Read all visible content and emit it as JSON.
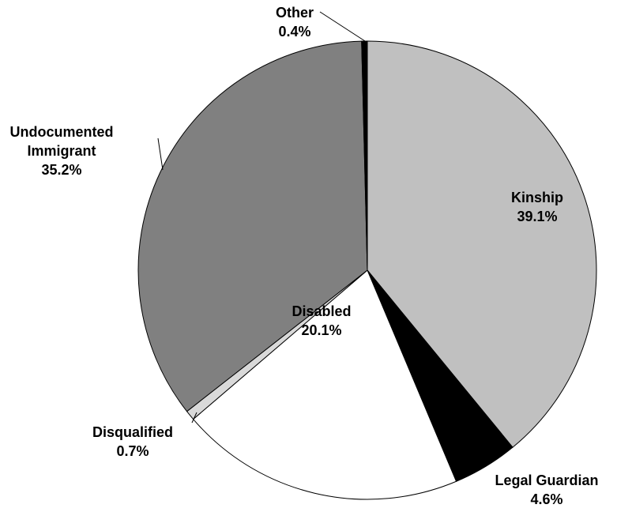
{
  "chart_data": {
    "type": "pie",
    "categories": [
      "Kinship",
      "Legal Guardian",
      "Disabled",
      "Disqualified",
      "Undocumented Immigrant",
      "Other"
    ],
    "values": [
      39.1,
      4.6,
      20.1,
      0.7,
      35.2,
      0.4
    ],
    "value_labels": [
      "39.1%",
      "4.6%",
      "20.1%",
      "0.7%",
      "35.2%",
      "0.4%"
    ],
    "colors": [
      "#c0c0c0",
      "#000000",
      "#ffffff",
      "#d9d9d9",
      "#808080",
      "#000000"
    ]
  }
}
